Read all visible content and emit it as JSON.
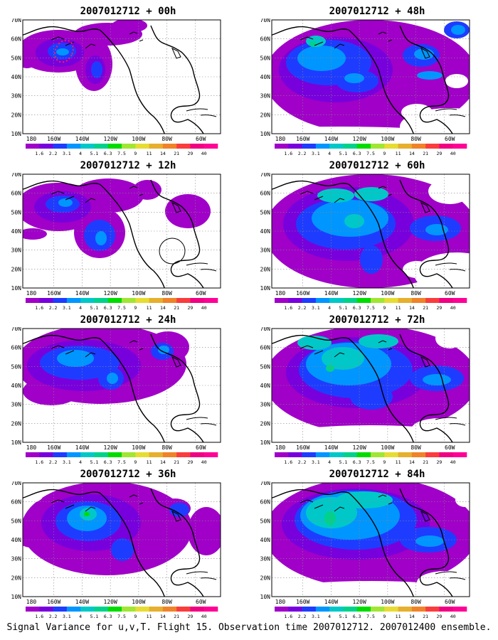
{
  "caption": "Signal Variance for u,v,T. Flight 15. Observation time 2007012712. 2007012400 ensemble.",
  "lat_labels": [
    "70N",
    "60N",
    "50N",
    "40N",
    "30N",
    "20N",
    "10N"
  ],
  "lon_labels": [
    "180",
    "160W",
    "140W",
    "120W",
    "100W",
    "80W",
    "60W"
  ],
  "colorbar": {
    "levels": [
      "1.6",
      "2.2",
      "3.1",
      "4",
      "5.1",
      "6.3",
      "7.5",
      "9",
      "11",
      "14",
      "21",
      "29",
      "40"
    ],
    "colors": [
      "#a000c8",
      "#7800dc",
      "#1e3cff",
      "#0096ff",
      "#00c8c8",
      "#00d28c",
      "#00dc00",
      "#a0e632",
      "#e6dc32",
      "#e6af2d",
      "#f08228",
      "#fa3c3c",
      "#f00082",
      "#ff0096"
    ]
  },
  "panels": [
    {
      "id": "p00",
      "title": "2007012712 + 00h"
    },
    {
      "id": "p48",
      "title": "2007012712 + 48h"
    },
    {
      "id": "p12",
      "title": "2007012712 + 12h"
    },
    {
      "id": "p60",
      "title": "2007012712 + 60h"
    },
    {
      "id": "p24",
      "title": "2007012712 + 24h"
    },
    {
      "id": "p72",
      "title": "2007012712 + 72h"
    },
    {
      "id": "p36",
      "title": "2007012712 + 36h"
    },
    {
      "id": "p84",
      "title": "2007012712 + 84h"
    }
  ]
}
